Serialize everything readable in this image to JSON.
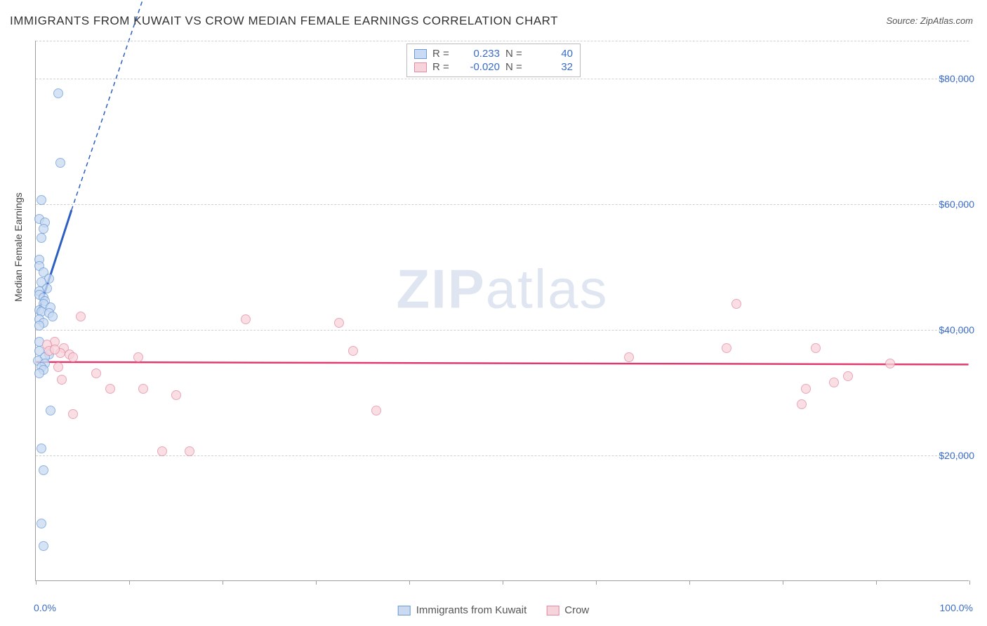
{
  "title": "IMMIGRANTS FROM KUWAIT VS CROW MEDIAN FEMALE EARNINGS CORRELATION CHART",
  "source": "Source: ZipAtlas.com",
  "watermark_a": "ZIP",
  "watermark_b": "atlas",
  "y_axis_label": "Median Female Earnings",
  "chart": {
    "type": "scatter",
    "xlim": [
      0,
      100
    ],
    "ylim": [
      0,
      86000
    ],
    "x_ticks": [
      0,
      10,
      20,
      30,
      40,
      50,
      60,
      70,
      80,
      90,
      100
    ],
    "x_tick_labels": {
      "0": "0.0%",
      "100": "100.0%"
    },
    "y_gridlines": [
      20000,
      40000,
      60000,
      80000,
      86000
    ],
    "y_tick_labels": {
      "20000": "$20,000",
      "40000": "$40,000",
      "60000": "$60,000",
      "80000": "$80,000"
    },
    "background_color": "#ffffff",
    "grid_color": "#d0d0d0",
    "axis_color": "#9e9e9e"
  },
  "series": [
    {
      "name": "Immigrants from Kuwait",
      "marker_fill": "#c9daf2",
      "marker_stroke": "#6a9ad8",
      "line_color": "#2c5fc1",
      "R": "0.233",
      "N": "40",
      "trend": {
        "x1": 0.2,
        "y1": 42500,
        "x2": 3.8,
        "y2": 59000,
        "dash_x2": 12.0,
        "dash_y2": 95000
      },
      "points": [
        {
          "x": 2.4,
          "y": 77500
        },
        {
          "x": 2.6,
          "y": 66500
        },
        {
          "x": 0.6,
          "y": 60500
        },
        {
          "x": 0.4,
          "y": 57500
        },
        {
          "x": 1.0,
          "y": 57000
        },
        {
          "x": 0.8,
          "y": 56000
        },
        {
          "x": 0.6,
          "y": 54500
        },
        {
          "x": 0.4,
          "y": 51000
        },
        {
          "x": 0.4,
          "y": 50000
        },
        {
          "x": 0.8,
          "y": 49000
        },
        {
          "x": 1.4,
          "y": 48000
        },
        {
          "x": 0.6,
          "y": 47500
        },
        {
          "x": 1.2,
          "y": 46500
        },
        {
          "x": 0.4,
          "y": 46000
        },
        {
          "x": 0.4,
          "y": 45500
        },
        {
          "x": 0.8,
          "y": 45000
        },
        {
          "x": 1.0,
          "y": 44500
        },
        {
          "x": 0.8,
          "y": 44000
        },
        {
          "x": 1.6,
          "y": 43500
        },
        {
          "x": 0.4,
          "y": 43000
        },
        {
          "x": 0.6,
          "y": 42800
        },
        {
          "x": 1.4,
          "y": 42500
        },
        {
          "x": 1.8,
          "y": 42000
        },
        {
          "x": 0.4,
          "y": 41500
        },
        {
          "x": 0.8,
          "y": 41000
        },
        {
          "x": 0.4,
          "y": 40500
        },
        {
          "x": 0.4,
          "y": 36500
        },
        {
          "x": 1.4,
          "y": 36000
        },
        {
          "x": 1.0,
          "y": 35500
        },
        {
          "x": 0.2,
          "y": 35000
        },
        {
          "x": 1.0,
          "y": 34500
        },
        {
          "x": 0.6,
          "y": 34000
        },
        {
          "x": 0.8,
          "y": 33500
        },
        {
          "x": 0.4,
          "y": 33000
        },
        {
          "x": 1.6,
          "y": 27000
        },
        {
          "x": 0.6,
          "y": 21000
        },
        {
          "x": 0.8,
          "y": 17500
        },
        {
          "x": 0.6,
          "y": 9000
        },
        {
          "x": 0.8,
          "y": 5500
        },
        {
          "x": 0.4,
          "y": 38000
        }
      ]
    },
    {
      "name": "Crow",
      "marker_fill": "#f7d3dc",
      "marker_stroke": "#e48aa3",
      "line_color": "#e03b6e",
      "R": "-0.020",
      "N": "32",
      "trend": {
        "x1": 0,
        "y1": 34800,
        "x2": 100,
        "y2": 34400
      },
      "points": [
        {
          "x": 4.8,
          "y": 42000
        },
        {
          "x": 22.5,
          "y": 41500
        },
        {
          "x": 32.5,
          "y": 41000
        },
        {
          "x": 75.0,
          "y": 44000
        },
        {
          "x": 2.0,
          "y": 38000
        },
        {
          "x": 1.2,
          "y": 37500
        },
        {
          "x": 3.0,
          "y": 37000
        },
        {
          "x": 1.4,
          "y": 36500
        },
        {
          "x": 2.6,
          "y": 36200
        },
        {
          "x": 3.6,
          "y": 36000
        },
        {
          "x": 4.0,
          "y": 35500
        },
        {
          "x": 11.0,
          "y": 35500
        },
        {
          "x": 34.0,
          "y": 36500
        },
        {
          "x": 63.5,
          "y": 35500
        },
        {
          "x": 74.0,
          "y": 37000
        },
        {
          "x": 83.5,
          "y": 37000
        },
        {
          "x": 2.4,
          "y": 34000
        },
        {
          "x": 6.5,
          "y": 33000
        },
        {
          "x": 91.5,
          "y": 34500
        },
        {
          "x": 2.8,
          "y": 32000
        },
        {
          "x": 8.0,
          "y": 30500
        },
        {
          "x": 11.5,
          "y": 30500
        },
        {
          "x": 15.0,
          "y": 29500
        },
        {
          "x": 85.5,
          "y": 31500
        },
        {
          "x": 82.5,
          "y": 30500
        },
        {
          "x": 87.0,
          "y": 32500
        },
        {
          "x": 36.5,
          "y": 27000
        },
        {
          "x": 82.0,
          "y": 28000
        },
        {
          "x": 4.0,
          "y": 26500
        },
        {
          "x": 13.5,
          "y": 20500
        },
        {
          "x": 16.5,
          "y": 20500
        },
        {
          "x": 2.0,
          "y": 36800
        }
      ]
    }
  ],
  "legend_top_labels": {
    "R": "R =",
    "N": "N ="
  }
}
